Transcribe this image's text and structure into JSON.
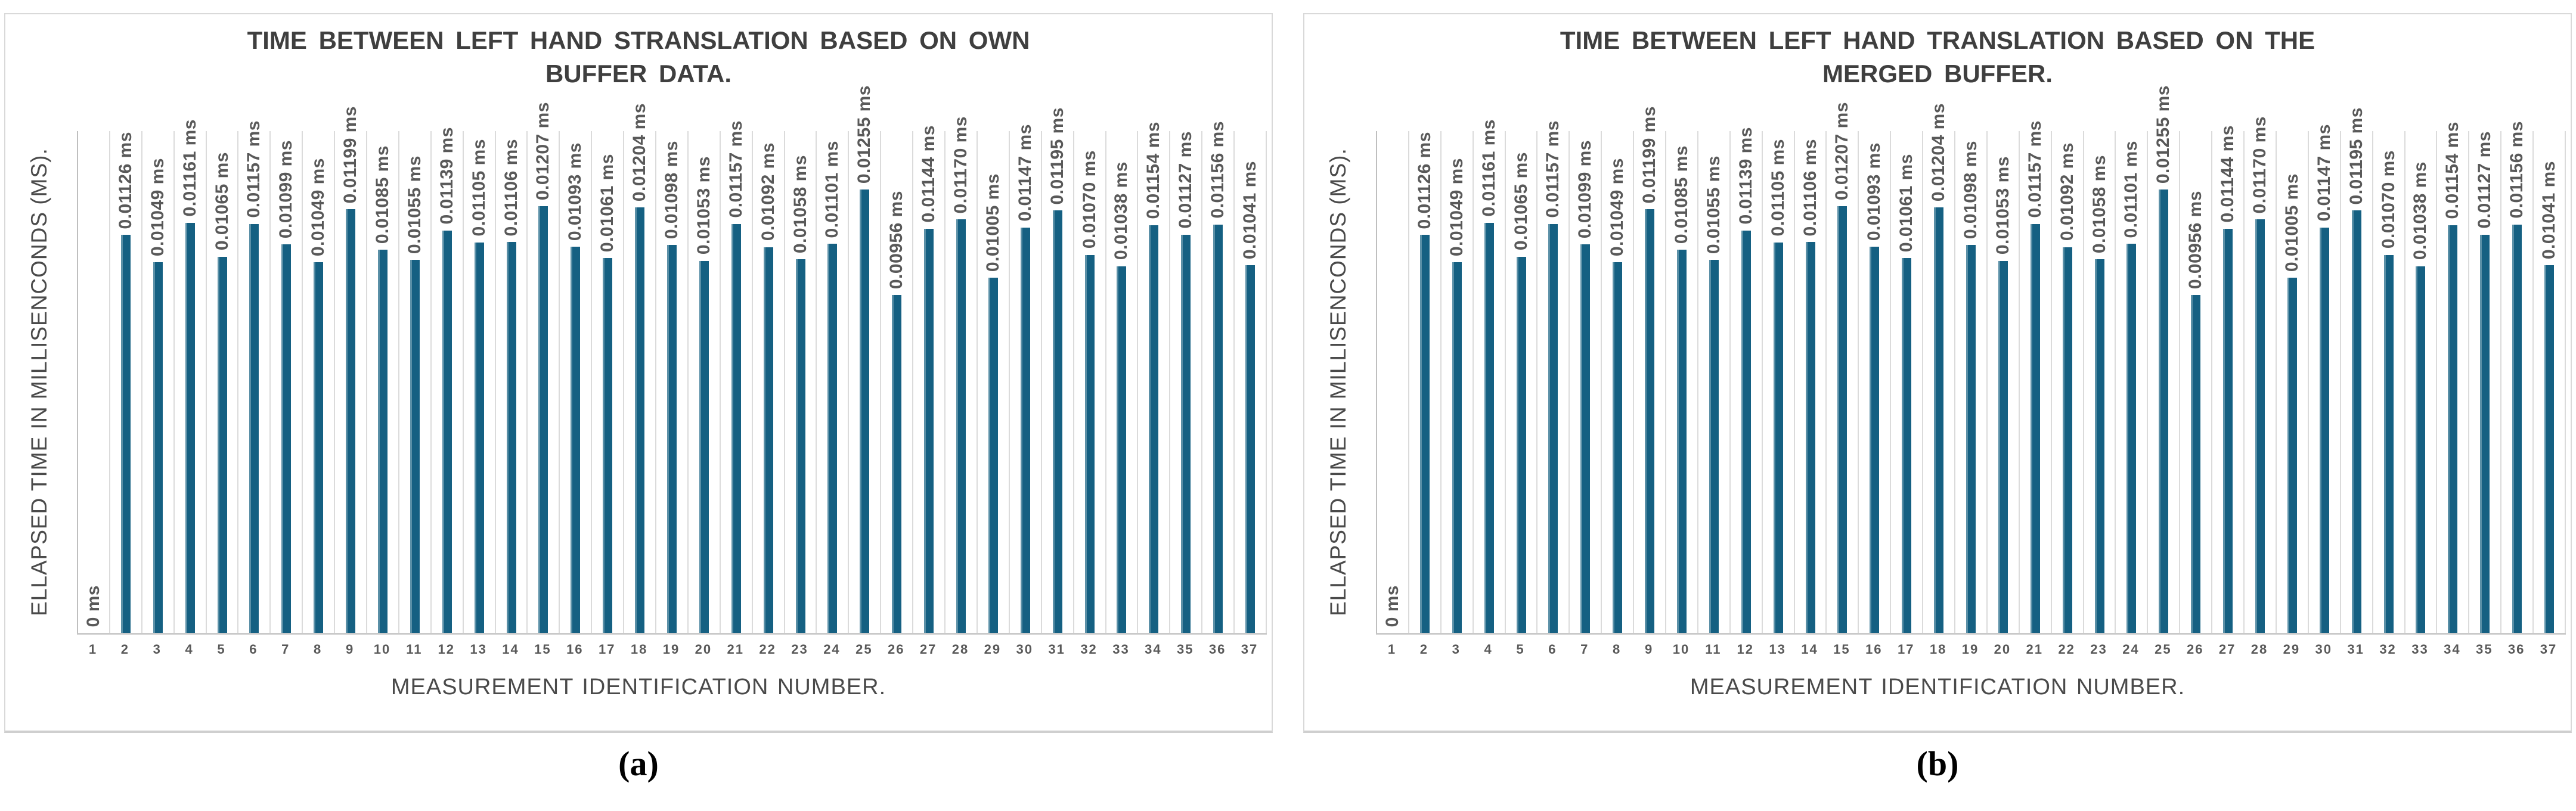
{
  "style": {
    "bar_color": "#156082",
    "gridline_color": "#DBDBDB",
    "axis_line_color": "#BFBFBF",
    "label_text_color": "#595959",
    "title_text_color": "#3F3F3F",
    "panel_border_color": "#D9D9D9",
    "background": "#ffffff"
  },
  "chart_data": [
    {
      "type": "bar",
      "title": "TIME BETWEEN LEFT HAND STRANSLATION BASED ON OWN BUFFER DATA.",
      "xlabel": "MEASUREMENT IDENTIFICATION NUMBER.",
      "ylabel": "ELLAPSED TIME IN MILLISENCONDS (MS).",
      "caption": "(a)",
      "legend": "none",
      "grid": "vertical category gridlines",
      "unit": "ms",
      "zero_label": "0 ms",
      "label_decimals": 5,
      "ylim": [
        0,
        0.0142
      ],
      "categories": [
        1,
        2,
        3,
        4,
        5,
        6,
        7,
        8,
        9,
        10,
        11,
        12,
        13,
        14,
        15,
        16,
        17,
        18,
        19,
        20,
        21,
        22,
        23,
        24,
        25,
        26,
        27,
        28,
        29,
        30,
        31,
        32,
        33,
        34,
        35,
        36,
        37
      ],
      "values": [
        0,
        0.01126,
        0.01049,
        0.01161,
        0.01065,
        0.01157,
        0.01099,
        0.01049,
        0.01199,
        0.01085,
        0.01055,
        0.01139,
        0.01105,
        0.01106,
        0.01207,
        0.01093,
        0.01061,
        0.01204,
        0.01098,
        0.01053,
        0.01157,
        0.01092,
        0.01058,
        0.01101,
        0.01255,
        0.00956,
        0.01144,
        0.0117,
        0.01005,
        0.01147,
        0.01195,
        0.0107,
        0.01038,
        0.01154,
        0.01127,
        0.01156,
        0.01041
      ]
    },
    {
      "type": "bar",
      "title": "TIME BETWEEN LEFT HAND TRANSLATION BASED ON THE MERGED BUFFER.",
      "xlabel": "MEASUREMENT IDENTIFICATION NUMBER.",
      "ylabel": "ELLAPSED TIME IN MILLISENCONDS (MS).",
      "caption": "(b)",
      "legend": "none",
      "grid": "vertical category gridlines",
      "unit": "ms",
      "zero_label": "0 ms",
      "label_decimals": 5,
      "ylim": [
        0,
        0.0142
      ],
      "categories": [
        1,
        2,
        3,
        4,
        5,
        6,
        7,
        8,
        9,
        10,
        11,
        12,
        13,
        14,
        15,
        16,
        17,
        18,
        19,
        20,
        21,
        22,
        23,
        24,
        25,
        26,
        27,
        28,
        29,
        30,
        31,
        32,
        33,
        34,
        35,
        36,
        37
      ],
      "values": [
        0,
        0.01126,
        0.01049,
        0.01161,
        0.01065,
        0.01157,
        0.01099,
        0.01049,
        0.01199,
        0.01085,
        0.01055,
        0.01139,
        0.01105,
        0.01106,
        0.01207,
        0.01093,
        0.01061,
        0.01204,
        0.01098,
        0.01053,
        0.01157,
        0.01092,
        0.01058,
        0.01101,
        0.01255,
        0.00956,
        0.01144,
        0.0117,
        0.01005,
        0.01147,
        0.01195,
        0.0107,
        0.01038,
        0.01154,
        0.01127,
        0.01156,
        0.01041
      ]
    }
  ]
}
